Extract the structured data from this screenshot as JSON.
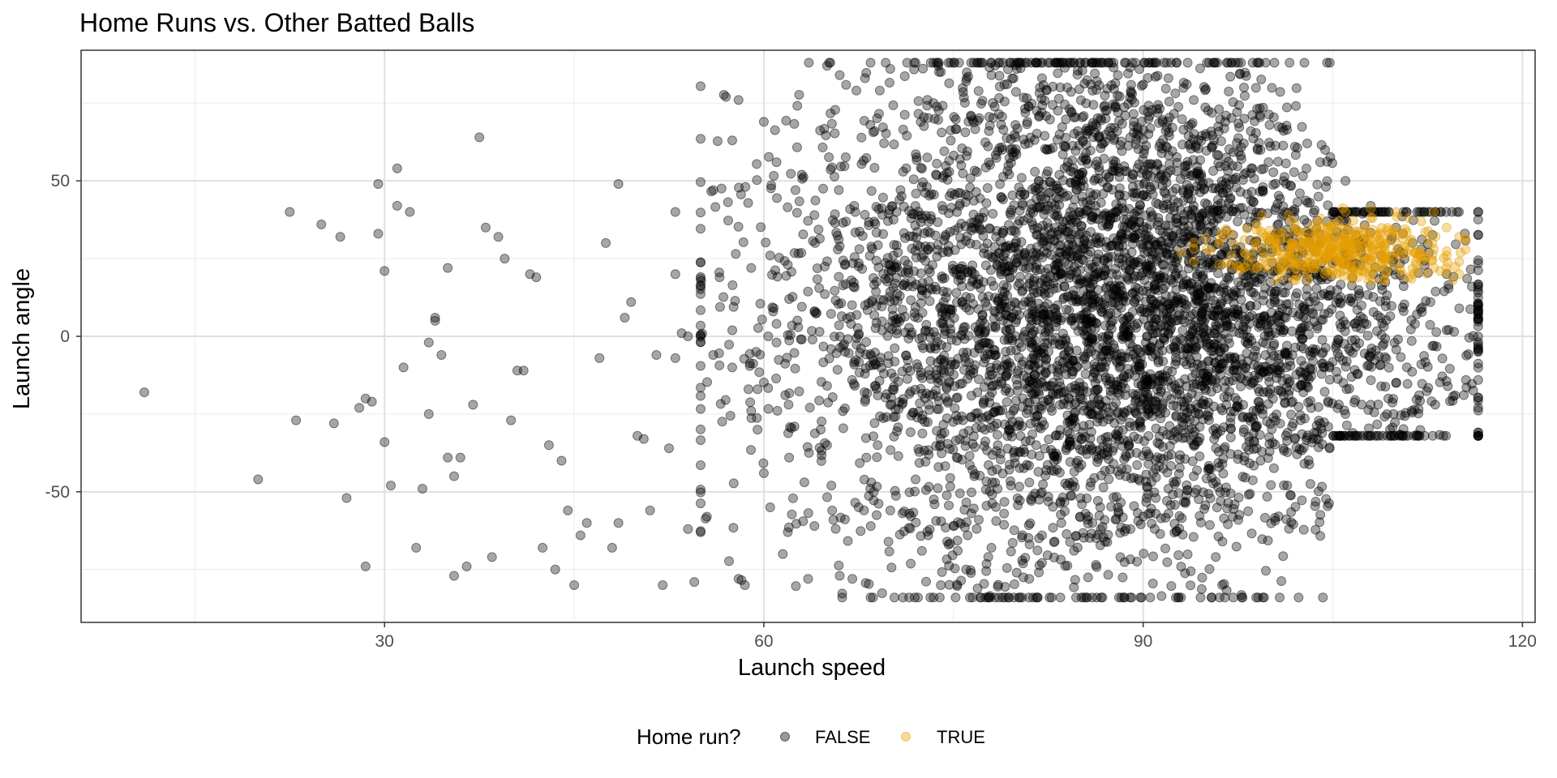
{
  "chart_data": {
    "type": "scatter",
    "title": "Home Runs vs. Other Batted Balls",
    "xlabel": "Launch speed",
    "ylabel": "Launch angle",
    "xlim": [
      6,
      121
    ],
    "ylim": [
      -92,
      92
    ],
    "x_ticks": [
      30,
      60,
      90,
      120
    ],
    "y_ticks": [
      -50,
      0,
      50
    ],
    "x_minor_ticks": [
      15,
      45,
      75,
      105
    ],
    "y_minor_ticks": [
      -75,
      -25,
      25,
      75
    ],
    "grid": true,
    "legend": {
      "title": "Home run?",
      "position": "bottom",
      "entries": [
        "FALSE",
        "TRUE"
      ]
    },
    "colors": {
      "FALSE": "#000000",
      "TRUE": "#E69F00",
      "point_alpha": 0.35
    },
    "series": [
      {
        "name": "FALSE",
        "description_approx": "~5000 batted balls; sparse at low speed, dense cloud from ~60 to ~115 mph",
        "points": [
          [
            11,
            -18
          ],
          [
            20,
            -46
          ],
          [
            22.5,
            40
          ],
          [
            23,
            -27
          ],
          [
            25,
            36
          ],
          [
            26,
            -28
          ],
          [
            26.5,
            32
          ],
          [
            27,
            -52
          ],
          [
            28,
            -23
          ],
          [
            28.5,
            -74
          ],
          [
            28.5,
            -20
          ],
          [
            29,
            -21
          ],
          [
            29.5,
            33
          ],
          [
            29.5,
            49
          ],
          [
            30,
            21
          ],
          [
            30,
            -34
          ],
          [
            30.5,
            -48
          ],
          [
            31,
            54
          ],
          [
            31,
            42
          ],
          [
            31.5,
            -10
          ],
          [
            32,
            40
          ],
          [
            32.5,
            -68
          ],
          [
            33,
            -49
          ],
          [
            33.5,
            -25
          ],
          [
            33.5,
            -2
          ],
          [
            34,
            6
          ],
          [
            34,
            5
          ],
          [
            34.5,
            -6
          ],
          [
            35,
            -39
          ],
          [
            35,
            22
          ],
          [
            35.5,
            -45
          ],
          [
            35.5,
            -77
          ],
          [
            36,
            -39
          ],
          [
            36.5,
            -74
          ],
          [
            37,
            -22
          ],
          [
            37.5,
            64
          ],
          [
            38,
            35
          ],
          [
            38.5,
            -71
          ],
          [
            39,
            32
          ],
          [
            39.5,
            25
          ],
          [
            40,
            -27
          ],
          [
            40.5,
            -11
          ],
          [
            41,
            -11
          ],
          [
            41.5,
            20
          ],
          [
            42,
            19
          ],
          [
            42.5,
            -68
          ],
          [
            43,
            -35
          ],
          [
            43.5,
            -75
          ],
          [
            44,
            -40
          ],
          [
            44.5,
            -56
          ],
          [
            45,
            -80
          ],
          [
            45.5,
            -64
          ],
          [
            46,
            -60
          ],
          [
            47,
            -7
          ],
          [
            47.5,
            30
          ],
          [
            48,
            -68
          ],
          [
            48.5,
            49
          ],
          [
            48.5,
            -60
          ],
          [
            49,
            6
          ],
          [
            49.5,
            11
          ],
          [
            50,
            -32
          ],
          [
            50.5,
            -33
          ],
          [
            51,
            -56
          ],
          [
            51.5,
            -6
          ],
          [
            52,
            -80
          ],
          [
            52.5,
            -36
          ],
          [
            53,
            40
          ],
          [
            53,
            20
          ],
          [
            53,
            -7
          ],
          [
            53.5,
            1
          ],
          [
            54,
            -62
          ],
          [
            54,
            0
          ],
          [
            54.5,
            -79
          ],
          [
            55,
            -63
          ],
          [
            55.5,
            -58
          ],
          [
            56,
            47
          ],
          [
            56,
            -6
          ],
          [
            56.5,
            19
          ],
          [
            57,
            77
          ],
          [
            57.5,
            63
          ],
          [
            57.5,
            -10
          ],
          [
            58,
            76
          ],
          [
            58,
            -78
          ],
          [
            58.5,
            -80
          ],
          [
            59,
            -24
          ],
          [
            59.5,
            -30
          ],
          [
            60,
            69
          ],
          [
            60,
            -44
          ],
          [
            60.5,
            -55
          ],
          [
            61,
            -2
          ],
          [
            61.5,
            -70
          ],
          [
            62,
            -39
          ],
          [
            62.5,
            47
          ],
          [
            63,
            -1
          ],
          [
            63.5,
            -78
          ],
          [
            64,
            -61
          ],
          [
            64.5,
            -30
          ],
          [
            65,
            -35
          ],
          [
            65.5,
            -59
          ],
          [
            66,
            -77
          ],
          [
            67,
            -78
          ],
          [
            67.5,
            -55
          ],
          [
            68,
            -21
          ],
          [
            68.5,
            -47
          ],
          [
            69,
            -35
          ],
          [
            69.5,
            -12
          ],
          [
            70,
            -56
          ],
          [
            70.5,
            2
          ],
          [
            71,
            -84
          ],
          [
            71.5,
            -57
          ],
          [
            72,
            -46
          ],
          [
            72.5,
            -69
          ],
          [
            73,
            -64
          ],
          [
            73.5,
            -54
          ],
          [
            74,
            -80
          ],
          [
            74.5,
            -66
          ],
          [
            75,
            -61
          ],
          [
            76,
            -75
          ],
          [
            76.5,
            -43
          ],
          [
            77,
            -59
          ],
          [
            77.5,
            -30
          ],
          [
            78,
            -68
          ],
          [
            78.5,
            -35
          ],
          [
            79,
            -57
          ],
          [
            80,
            -76
          ],
          [
            80.5,
            -73
          ],
          [
            81,
            -47
          ],
          [
            82,
            -64
          ],
          [
            83,
            -66
          ],
          [
            84,
            -48
          ],
          [
            85,
            -58
          ],
          [
            86,
            -60
          ],
          [
            87,
            -66
          ],
          [
            88,
            -55
          ],
          [
            89,
            -62
          ],
          [
            90,
            -58
          ],
          [
            91,
            -52
          ],
          [
            92,
            -57
          ],
          [
            65,
            87
          ],
          [
            66,
            84
          ],
          [
            68,
            83
          ],
          [
            70,
            86
          ],
          [
            72,
            88
          ],
          [
            74,
            85
          ],
          [
            76,
            82
          ],
          [
            78,
            84
          ],
          [
            80,
            86
          ],
          [
            82,
            83
          ],
          [
            84,
            80
          ],
          [
            86,
            79
          ],
          [
            88,
            84
          ],
          [
            90,
            81
          ],
          [
            92,
            83
          ],
          [
            94,
            76
          ],
          [
            96,
            73
          ],
          [
            98,
            70
          ],
          [
            100,
            68
          ],
          [
            102,
            61
          ],
          [
            104,
            56
          ],
          [
            106,
            50
          ],
          [
            108,
            42
          ],
          [
            110,
            35
          ],
          [
            112,
            28
          ],
          [
            114,
            20
          ],
          [
            116,
            16
          ],
          [
            115,
            9
          ],
          [
            114,
            2
          ],
          [
            113,
            -3
          ],
          [
            112,
            -9
          ],
          [
            110,
            -15
          ],
          [
            108,
            -22
          ],
          [
            106,
            -25
          ],
          [
            104,
            -28
          ],
          [
            102,
            -33
          ],
          [
            100,
            -37
          ],
          [
            98,
            -40
          ],
          [
            96,
            -42
          ],
          [
            94,
            -45
          ],
          [
            92,
            -49
          ],
          [
            61,
            56
          ],
          [
            63,
            52
          ],
          [
            64,
            39
          ],
          [
            66,
            29
          ],
          [
            62,
            12
          ],
          [
            64,
            8
          ],
          [
            60.5,
            26
          ],
          [
            59,
            22
          ],
          [
            61,
            4
          ],
          [
            59.5,
            -17
          ]
        ]
      },
      {
        "name": "TRUE",
        "description_approx": "home runs clustered at launch speed ~95-115, launch angle ~18-42",
        "points": [
          [
            96,
            30
          ],
          [
            97,
            33
          ],
          [
            98,
            27
          ],
          [
            99,
            36
          ],
          [
            100,
            31
          ],
          [
            101,
            25
          ],
          [
            101.5,
            39
          ],
          [
            102,
            29
          ],
          [
            103,
            34
          ],
          [
            103.5,
            22
          ],
          [
            104,
            27
          ],
          [
            105,
            32
          ],
          [
            105.5,
            37
          ],
          [
            106,
            24
          ],
          [
            106.5,
            30
          ],
          [
            107,
            28
          ],
          [
            107.5,
            35
          ],
          [
            108,
            41
          ],
          [
            108.5,
            22
          ],
          [
            109,
            26
          ],
          [
            109.5,
            33
          ],
          [
            110,
            30
          ],
          [
            110.5,
            20
          ],
          [
            111,
            38
          ],
          [
            111.5,
            27
          ],
          [
            112,
            24
          ],
          [
            112.5,
            31
          ],
          [
            113,
            28
          ],
          [
            113.5,
            21
          ],
          [
            114,
            26
          ],
          [
            114.5,
            18
          ],
          [
            115,
            24
          ],
          [
            115,
            32
          ],
          [
            114,
            35
          ],
          [
            113,
            40
          ],
          [
            112,
            37
          ],
          [
            110,
            40
          ],
          [
            108,
            38
          ],
          [
            106,
            40
          ],
          [
            104,
            38
          ],
          [
            102,
            36
          ],
          [
            100,
            34
          ],
          [
            98,
            31
          ],
          [
            97,
            26
          ],
          [
            96,
            23
          ],
          [
            95,
            28
          ],
          [
            94,
            24
          ],
          [
            93,
            27
          ],
          [
            99,
            22
          ],
          [
            101,
            19
          ],
          [
            103,
            20
          ],
          [
            105,
            21
          ],
          [
            107,
            19
          ],
          [
            109,
            18
          ],
          [
            111,
            19
          ],
          [
            113,
            22
          ],
          [
            115,
            20
          ]
        ]
      }
    ]
  }
}
